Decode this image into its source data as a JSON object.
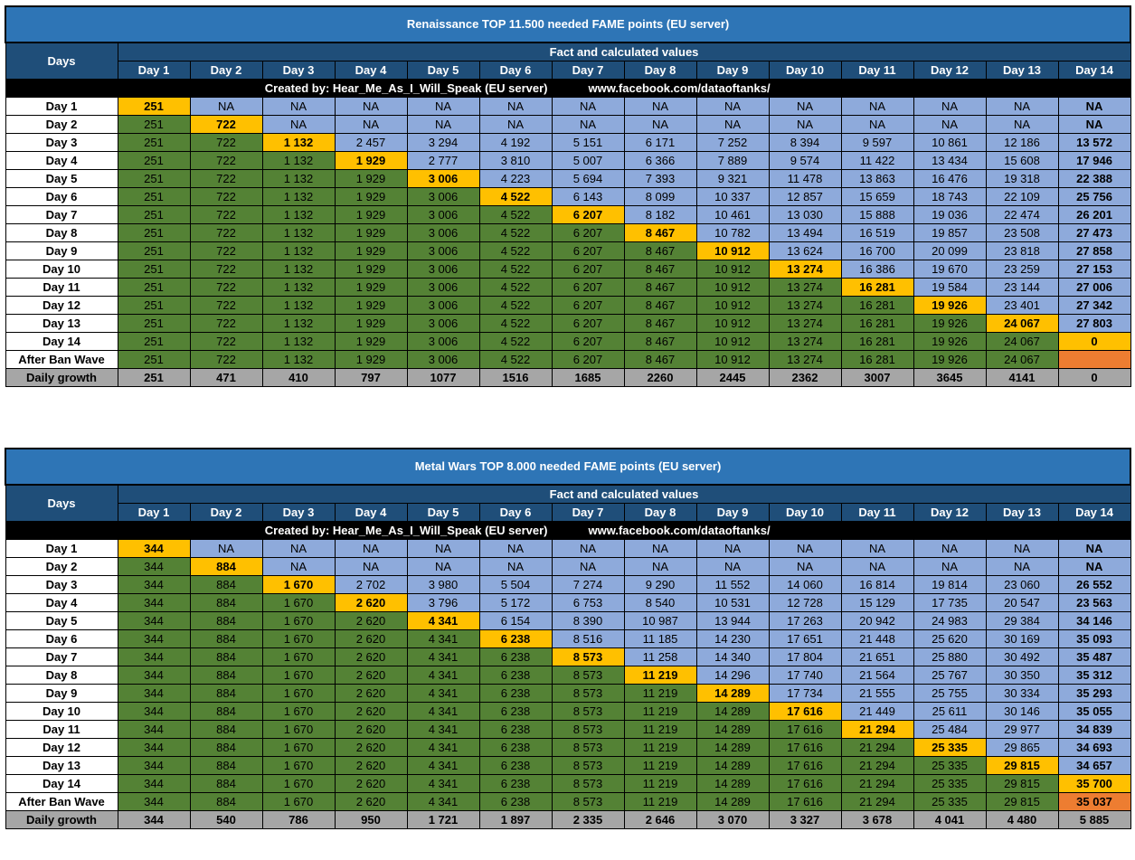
{
  "tables": [
    {
      "title": "Renaissance TOP 11.500 needed FAME points (EU server)",
      "days_label": "Days",
      "subheader": "Fact and calculated values",
      "columns": [
        "Day 1",
        "Day 2",
        "Day 3",
        "Day 4",
        "Day 5",
        "Day 6",
        "Day 7",
        "Day 8",
        "Day 9",
        "Day 10",
        "Day 11",
        "Day 12",
        "Day 13",
        "Day 14"
      ],
      "credit_left": "Created by: Hear_Me_As_I_Will_Speak (EU server)",
      "credit_right": "www.facebook.com/dataoftanks/",
      "rows": [
        {
          "label": "Day 1",
          "values": [
            "251",
            "NA",
            "NA",
            "NA",
            "NA",
            "NA",
            "NA",
            "NA",
            "NA",
            "NA",
            "NA",
            "NA",
            "NA",
            "NA"
          ]
        },
        {
          "label": "Day 2",
          "values": [
            "251",
            "722",
            "NA",
            "NA",
            "NA",
            "NA",
            "NA",
            "NA",
            "NA",
            "NA",
            "NA",
            "NA",
            "NA",
            "NA"
          ]
        },
        {
          "label": "Day 3",
          "values": [
            "251",
            "722",
            "1 132",
            "2 457",
            "3 294",
            "4 192",
            "5 151",
            "6 171",
            "7 252",
            "8 394",
            "9 597",
            "10 861",
            "12 186",
            "13 572"
          ]
        },
        {
          "label": "Day 4",
          "values": [
            "251",
            "722",
            "1 132",
            "1 929",
            "2 777",
            "3 810",
            "5 007",
            "6 366",
            "7 889",
            "9 574",
            "11 422",
            "13 434",
            "15 608",
            "17 946"
          ]
        },
        {
          "label": "Day 5",
          "values": [
            "251",
            "722",
            "1 132",
            "1 929",
            "3 006",
            "4 223",
            "5 694",
            "7 393",
            "9 321",
            "11 478",
            "13 863",
            "16 476",
            "19 318",
            "22 388"
          ]
        },
        {
          "label": "Day 6",
          "values": [
            "251",
            "722",
            "1 132",
            "1 929",
            "3 006",
            "4 522",
            "6 143",
            "8 099",
            "10 337",
            "12 857",
            "15 659",
            "18 743",
            "22 109",
            "25 756"
          ]
        },
        {
          "label": "Day 7",
          "values": [
            "251",
            "722",
            "1 132",
            "1 929",
            "3 006",
            "4 522",
            "6 207",
            "8 182",
            "10 461",
            "13 030",
            "15 888",
            "19 036",
            "22 474",
            "26 201"
          ]
        },
        {
          "label": "Day 8",
          "values": [
            "251",
            "722",
            "1 132",
            "1 929",
            "3 006",
            "4 522",
            "6 207",
            "8 467",
            "10 782",
            "13 494",
            "16 519",
            "19 857",
            "23 508",
            "27 473"
          ]
        },
        {
          "label": "Day 9",
          "values": [
            "251",
            "722",
            "1 132",
            "1 929",
            "3 006",
            "4 522",
            "6 207",
            "8 467",
            "10 912",
            "13 624",
            "16 700",
            "20 099",
            "23 818",
            "27 858"
          ]
        },
        {
          "label": "Day 10",
          "values": [
            "251",
            "722",
            "1 132",
            "1 929",
            "3 006",
            "4 522",
            "6 207",
            "8 467",
            "10 912",
            "13 274",
            "16 386",
            "19 670",
            "23 259",
            "27 153"
          ]
        },
        {
          "label": "Day 11",
          "values": [
            "251",
            "722",
            "1 132",
            "1 929",
            "3 006",
            "4 522",
            "6 207",
            "8 467",
            "10 912",
            "13 274",
            "16 281",
            "19 584",
            "23 144",
            "27 006"
          ]
        },
        {
          "label": "Day 12",
          "values": [
            "251",
            "722",
            "1 132",
            "1 929",
            "3 006",
            "4 522",
            "6 207",
            "8 467",
            "10 912",
            "13 274",
            "16 281",
            "19 926",
            "23 401",
            "27 342"
          ]
        },
        {
          "label": "Day 13",
          "values": [
            "251",
            "722",
            "1 132",
            "1 929",
            "3 006",
            "4 522",
            "6 207",
            "8 467",
            "10 912",
            "13 274",
            "16 281",
            "19 926",
            "24 067",
            "27 803"
          ]
        },
        {
          "label": "Day 14",
          "values": [
            "251",
            "722",
            "1 132",
            "1 929",
            "3 006",
            "4 522",
            "6 207",
            "8 467",
            "10 912",
            "13 274",
            "16 281",
            "19 926",
            "24 067",
            "0"
          ]
        },
        {
          "label": "After Ban Wave",
          "values": [
            "251",
            "722",
            "1 132",
            "1 929",
            "3 006",
            "4 522",
            "6 207",
            "8 467",
            "10 912",
            "13 274",
            "16 281",
            "19 926",
            "24 067",
            ""
          ]
        }
      ],
      "growth": {
        "label": "Daily growth",
        "values": [
          "251",
          "471",
          "410",
          "797",
          "1077",
          "1516",
          "1685",
          "2260",
          "2445",
          "2362",
          "3007",
          "3645",
          "4141",
          "0"
        ]
      }
    },
    {
      "title": "Metal Wars TOP 8.000 needed FAME points (EU server)",
      "days_label": "Days",
      "subheader": "Fact and calculated values",
      "columns": [
        "Day 1",
        "Day 2",
        "Day 3",
        "Day 4",
        "Day 5",
        "Day 6",
        "Day 7",
        "Day 8",
        "Day 9",
        "Day 10",
        "Day 11",
        "Day 12",
        "Day 13",
        "Day 14"
      ],
      "credit_left": "Created by: Hear_Me_As_I_Will_Speak (EU server)",
      "credit_right": "www.facebook.com/dataoftanks/",
      "rows": [
        {
          "label": "Day 1",
          "values": [
            "344",
            "NA",
            "NA",
            "NA",
            "NA",
            "NA",
            "NA",
            "NA",
            "NA",
            "NA",
            "NA",
            "NA",
            "NA",
            "NA"
          ]
        },
        {
          "label": "Day 2",
          "values": [
            "344",
            "884",
            "NA",
            "NA",
            "NA",
            "NA",
            "NA",
            "NA",
            "NA",
            "NA",
            "NA",
            "NA",
            "NA",
            "NA"
          ]
        },
        {
          "label": "Day 3",
          "values": [
            "344",
            "884",
            "1 670",
            "2 702",
            "3 980",
            "5 504",
            "7 274",
            "9 290",
            "11 552",
            "14 060",
            "16 814",
            "19 814",
            "23 060",
            "26 552"
          ]
        },
        {
          "label": "Day 4",
          "values": [
            "344",
            "884",
            "1 670",
            "2 620",
            "3 796",
            "5 172",
            "6 753",
            "8 540",
            "10 531",
            "12 728",
            "15 129",
            "17 735",
            "20 547",
            "23 563"
          ]
        },
        {
          "label": "Day 5",
          "values": [
            "344",
            "884",
            "1 670",
            "2 620",
            "4 341",
            "6 154",
            "8 390",
            "10 987",
            "13 944",
            "17 263",
            "20 942",
            "24 983",
            "29 384",
            "34 146"
          ]
        },
        {
          "label": "Day 6",
          "values": [
            "344",
            "884",
            "1 670",
            "2 620",
            "4 341",
            "6 238",
            "8 516",
            "11 185",
            "14 230",
            "17 651",
            "21 448",
            "25 620",
            "30 169",
            "35 093"
          ]
        },
        {
          "label": "Day 7",
          "values": [
            "344",
            "884",
            "1 670",
            "2 620",
            "4 341",
            "6 238",
            "8 573",
            "11 258",
            "14 340",
            "17 804",
            "21 651",
            "25 880",
            "30 492",
            "35 487"
          ]
        },
        {
          "label": "Day 8",
          "values": [
            "344",
            "884",
            "1 670",
            "2 620",
            "4 341",
            "6 238",
            "8 573",
            "11 219",
            "14 296",
            "17 740",
            "21 564",
            "25 767",
            "30 350",
            "35 312"
          ]
        },
        {
          "label": "Day 9",
          "values": [
            "344",
            "884",
            "1 670",
            "2 620",
            "4 341",
            "6 238",
            "8 573",
            "11 219",
            "14 289",
            "17 734",
            "21 555",
            "25 755",
            "30 334",
            "35 293"
          ]
        },
        {
          "label": "Day 10",
          "values": [
            "344",
            "884",
            "1 670",
            "2 620",
            "4 341",
            "6 238",
            "8 573",
            "11 219",
            "14 289",
            "17 616",
            "21 449",
            "25 611",
            "30 146",
            "35 055"
          ]
        },
        {
          "label": "Day 11",
          "values": [
            "344",
            "884",
            "1 670",
            "2 620",
            "4 341",
            "6 238",
            "8 573",
            "11 219",
            "14 289",
            "17 616",
            "21 294",
            "25 484",
            "29 977",
            "34 839"
          ]
        },
        {
          "label": "Day 12",
          "values": [
            "344",
            "884",
            "1 670",
            "2 620",
            "4 341",
            "6 238",
            "8 573",
            "11 219",
            "14 289",
            "17 616",
            "21 294",
            "25 335",
            "29 865",
            "34 693"
          ]
        },
        {
          "label": "Day 13",
          "values": [
            "344",
            "884",
            "1 670",
            "2 620",
            "4 341",
            "6 238",
            "8 573",
            "11 219",
            "14 289",
            "17 616",
            "21 294",
            "25 335",
            "29 815",
            "34 657"
          ]
        },
        {
          "label": "Day 14",
          "values": [
            "344",
            "884",
            "1 670",
            "2 620",
            "4 341",
            "6 238",
            "8 573",
            "11 219",
            "14 289",
            "17 616",
            "21 294",
            "25 335",
            "29 815",
            "35 700"
          ]
        },
        {
          "label": "After Ban Wave",
          "values": [
            "344",
            "884",
            "1 670",
            "2 620",
            "4 341",
            "6 238",
            "8 573",
            "11 219",
            "14 289",
            "17 616",
            "21 294",
            "25 335",
            "29 815",
            "35 037"
          ]
        }
      ],
      "growth": {
        "label": "Daily growth",
        "values": [
          "344",
          "540",
          "786",
          "950",
          "1 721",
          "1 897",
          "2 335",
          "2 646",
          "3 070",
          "3 327",
          "3 678",
          "4 041",
          "4 480",
          "5 885"
        ]
      }
    }
  ],
  "chart_data": [
    {
      "type": "table",
      "title": "Renaissance TOP 11.500 needed FAME points (EU server)",
      "categories": [
        "Day 1",
        "Day 2",
        "Day 3",
        "Day 4",
        "Day 5",
        "Day 6",
        "Day 7",
        "Day 8",
        "Day 9",
        "Day 10",
        "Day 11",
        "Day 12",
        "Day 13",
        "Day 14"
      ],
      "growth": [
        251,
        471,
        410,
        797,
        1077,
        1516,
        1685,
        2260,
        2445,
        2362,
        3007,
        3645,
        4141,
        0
      ]
    },
    {
      "type": "table",
      "title": "Metal Wars TOP 8.000 needed FAME points (EU server)",
      "categories": [
        "Day 1",
        "Day 2",
        "Day 3",
        "Day 4",
        "Day 5",
        "Day 6",
        "Day 7",
        "Day 8",
        "Day 9",
        "Day 10",
        "Day 11",
        "Day 12",
        "Day 13",
        "Day 14"
      ],
      "growth": [
        344,
        540,
        786,
        950,
        1721,
        1897,
        2335,
        2646,
        3070,
        3327,
        3678,
        4041,
        4480,
        5885
      ]
    }
  ],
  "colors": {
    "title_bg": "#2e75b6",
    "header_bg": "#1f4e79",
    "fact": "#548235",
    "calc": "#8eaadb",
    "highlight": "#ffc000",
    "ban_wave": "#ed7d31",
    "growth_bg": "#a6a6a6"
  }
}
